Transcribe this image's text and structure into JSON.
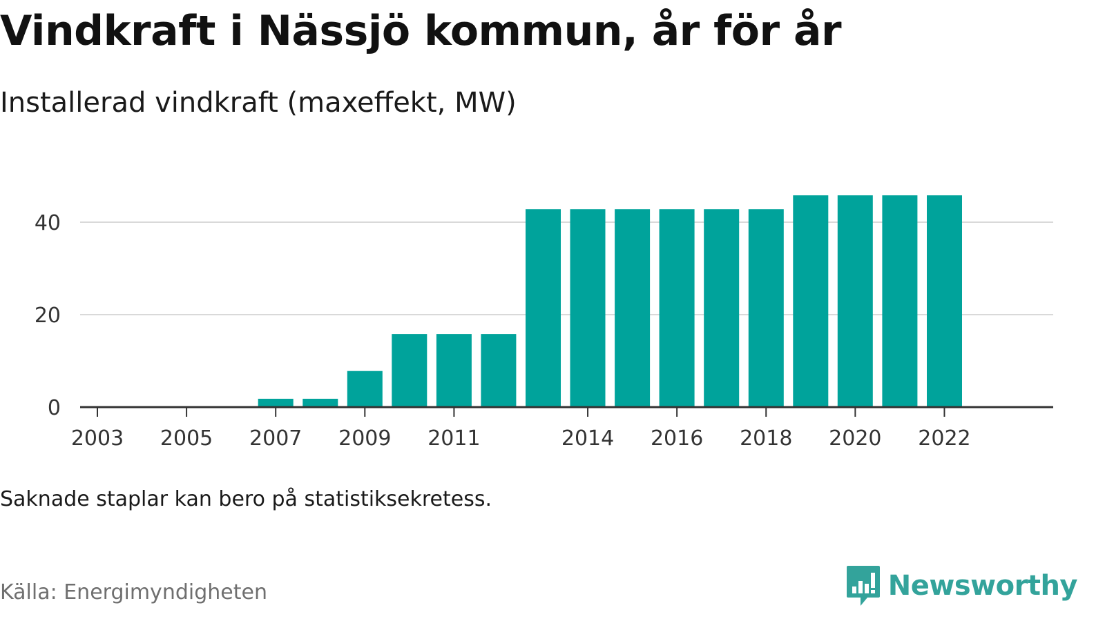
{
  "title": "Vindkraft i Nässjö kommun, år för år",
  "subtitle": "Installerad vindkraft (maxeffekt, MW)",
  "note": "Saknade staplar kan bero på statistiksekretess.",
  "source": "Källa: Energimyndigheten",
  "brand": {
    "name": "Newsworthy",
    "icon": "bar-chart-icon",
    "color": "#33a39b"
  },
  "colors": {
    "bar": "#00a39b",
    "grid": "#d9d9d9",
    "axis": "#333333",
    "tick_text": "#333333"
  },
  "chart_data": {
    "type": "bar",
    "categories": [
      "2003",
      "2004",
      "2005",
      "2006",
      "2007",
      "2008",
      "2009",
      "2010",
      "2011",
      "2012",
      "2013",
      "2014",
      "2015",
      "2016",
      "2017",
      "2018",
      "2019",
      "2020",
      "2021",
      "2022"
    ],
    "values": [
      0,
      0,
      0,
      0,
      1.8,
      1.8,
      7.8,
      15.8,
      15.8,
      15.8,
      42.8,
      42.8,
      42.8,
      42.8,
      42.8,
      42.8,
      45.8,
      45.8,
      45.8,
      45.8
    ],
    "x_tick_labels": [
      "2003",
      "2005",
      "2007",
      "2009",
      "2011",
      "2014",
      "2016",
      "2018",
      "2020",
      "2022"
    ],
    "y_ticks": [
      0,
      20,
      40
    ],
    "ylim": [
      0,
      50
    ],
    "grid": true,
    "legend": "none",
    "xlabel": "",
    "ylabel": ""
  }
}
